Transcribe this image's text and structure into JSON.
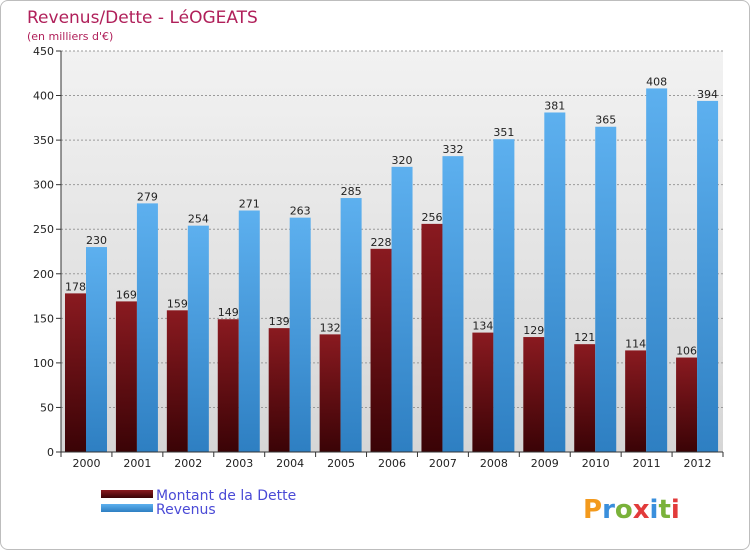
{
  "chart_data": {
    "type": "bar",
    "title": "Revenus/Dette - LéOGEATS",
    "subtitle": "(en milliers d'€)",
    "categories": [
      "2000",
      "2001",
      "2002",
      "2003",
      "2004",
      "2005",
      "2006",
      "2007",
      "2008",
      "2009",
      "2010",
      "2011",
      "2012"
    ],
    "series": [
      {
        "name": "Montant de la Dette",
        "color": "#6b0f14",
        "values": [
          178,
          169,
          159,
          149,
          139,
          132,
          228,
          256,
          134,
          129,
          121,
          114,
          106
        ]
      },
      {
        "name": "Revenus",
        "color": "#4a9fe0",
        "values": [
          230,
          279,
          254,
          271,
          263,
          285,
          320,
          332,
          351,
          381,
          365,
          408,
          394
        ]
      }
    ],
    "ylim": [
      0,
      450
    ],
    "yticks": [
      0,
      50,
      100,
      150,
      200,
      250,
      300,
      350,
      400,
      450
    ],
    "grid": true,
    "legend_position": "bottom-left"
  },
  "watermark": "Proxiti"
}
